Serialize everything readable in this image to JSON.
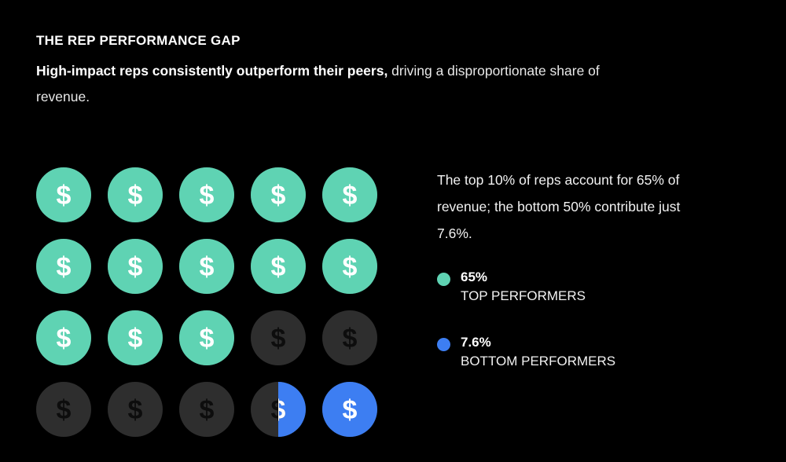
{
  "header": {
    "title": "THE REP PERFORMANCE GAP",
    "subtitle_bold": "High-impact reps consistently outperform their peers,",
    "subtitle_rest": " driving a disproportionate share of revenue."
  },
  "description": "The top 10% of reps account for 65% of revenue; the bottom 50% contribute just 7.6%.",
  "legend": [
    {
      "value": "65%",
      "label": "TOP PERFORMERS",
      "color": "#5fd3b3"
    },
    {
      "value": "7.6%",
      "label": "BOTTOM PERFORMERS",
      "color": "#3d7ef2"
    }
  ],
  "colors": {
    "top": "#5fd3b3",
    "bottom": "#3d7ef2",
    "neutral": "#2e2e2e",
    "neutral_symbol": "#0d0d0d"
  },
  "chart_data": {
    "type": "unit-icon-grid",
    "icon_symbol": "$",
    "rows": 4,
    "cols": 5,
    "total_units": 20,
    "series": [
      {
        "name": "TOP PERFORMERS",
        "value_percent": 65,
        "units": 13
      },
      {
        "name": "BOTTOM PERFORMERS",
        "value_percent": 7.6,
        "units": 1.5
      }
    ],
    "fill_order": "top series fills from first icon forward; bottom series fills from last icon backward"
  }
}
